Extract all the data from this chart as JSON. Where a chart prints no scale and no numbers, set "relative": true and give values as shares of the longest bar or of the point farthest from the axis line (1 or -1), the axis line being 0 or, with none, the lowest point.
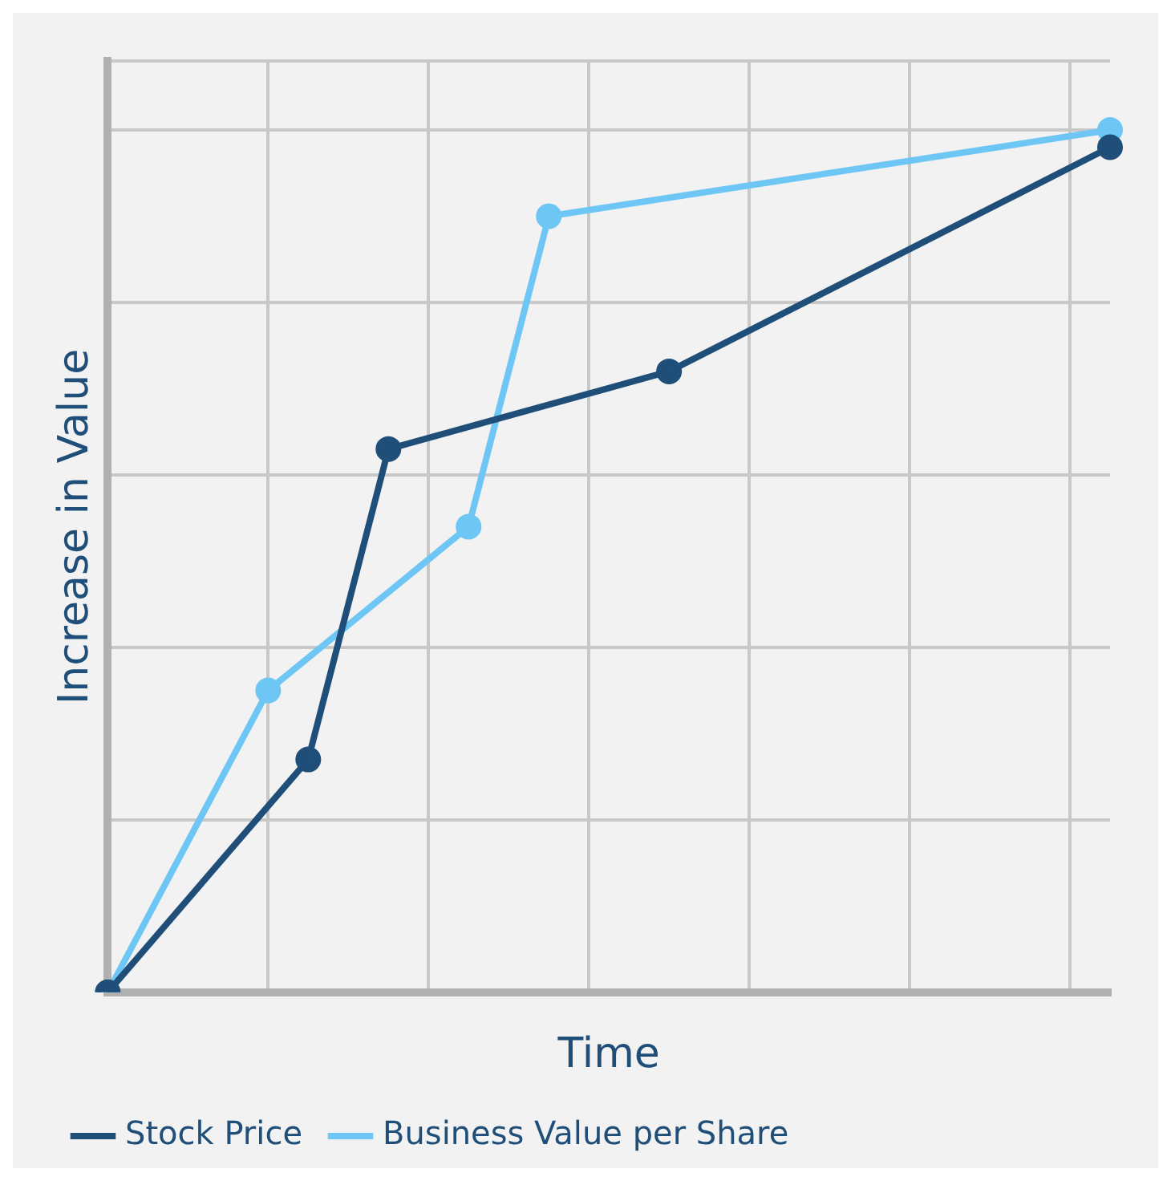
{
  "chart_data": {
    "type": "line",
    "xlabel": "Time",
    "ylabel": "Increase in Value",
    "relative": true,
    "categories": [
      null,
      null,
      null,
      null,
      null,
      null,
      null,
      null,
      null,
      null,
      null,
      null,
      null,
      null,
      null,
      null,
      null,
      null,
      null,
      null,
      null,
      null,
      null,
      null,
      null,
      null
    ],
    "grid": true,
    "legend": "bottom",
    "marker": "circle",
    "line_style": "solid",
    "series": [
      {
        "name": "Stock Price",
        "color": "#1f4e79",
        "values": [
          0,
          null,
          null,
          null,
          null,
          0.27,
          null,
          0.63,
          null,
          null,
          null,
          null,
          null,
          null,
          0.72,
          null,
          null,
          null,
          null,
          null,
          null,
          null,
          null,
          null,
          null,
          0.98
        ]
      },
      {
        "name": "Business Value per Share",
        "color": "#6ec6f5",
        "values": [
          0,
          null,
          null,
          null,
          0.35,
          null,
          null,
          null,
          null,
          0.54,
          null,
          0.9,
          null,
          null,
          null,
          null,
          null,
          null,
          null,
          null,
          null,
          null,
          null,
          null,
          null,
          1
        ]
      }
    ]
  }
}
